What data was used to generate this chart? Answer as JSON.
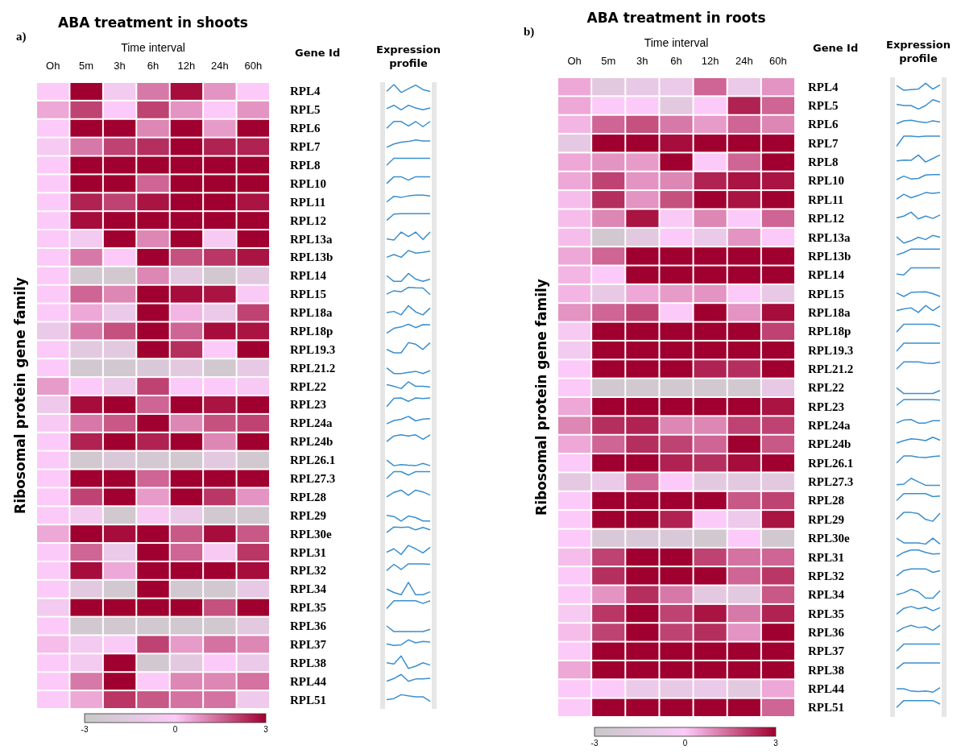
{
  "chart_data": [
    {
      "type": "heatmap",
      "title": "ABA treatment in shoots",
      "xlabel": "Time interval",
      "ylabel": "Ribosomal protein gene family",
      "y2label": "Gene Id",
      "annotations": [
        "a)",
        "Expression profile"
      ],
      "categories": [
        "Oh",
        "5m",
        "3h",
        "6h",
        "12h",
        "24h",
        "60h"
      ],
      "y_categories": [
        "RPL4",
        "RPL5",
        "RPL6",
        "RPL7",
        "RPL8",
        "RPL10",
        "RPL11",
        "RPL12",
        "RPL13a",
        "RPL13b",
        "RPL14",
        "RPL15",
        "RPL18a",
        "RPL18p",
        "RPL19.3",
        "RPL21.2",
        "RPL22",
        "RPL23",
        "RPL24a",
        "RPL24b",
        "RPL26.1",
        "RPL27.3",
        "RPL28",
        "RPL29",
        "RPL30e",
        "RPL31",
        "RPL32",
        "RPL34",
        "RPL35",
        "RPL36",
        "RPL37",
        "RPL38",
        "RPL44",
        "RPL51"
      ],
      "cells": [
        [
          0,
          3,
          -0.5,
          1.2,
          2.8,
          0.8,
          0
        ],
        [
          0.5,
          2,
          0,
          2,
          0.8,
          0,
          0.8
        ],
        [
          0,
          3,
          3,
          1,
          3,
          0.7,
          3
        ],
        [
          -0.3,
          1.2,
          2,
          2.3,
          3,
          2.5,
          2.5
        ],
        [
          0,
          3,
          3,
          3,
          3,
          3,
          3
        ],
        [
          0,
          3,
          3,
          1.5,
          3,
          3,
          3
        ],
        [
          0,
          2.5,
          2,
          2.7,
          3,
          3,
          2.7
        ],
        [
          0,
          2.8,
          3,
          3,
          3,
          3,
          3
        ],
        [
          0,
          -0.5,
          3,
          1,
          3,
          -0.3,
          3
        ],
        [
          0,
          1.2,
          0,
          3,
          1.8,
          2.2,
          2.7
        ],
        [
          0,
          -2.5,
          -2.5,
          1,
          -1.5,
          -2.5,
          -1.5
        ],
        [
          0,
          1.5,
          1,
          3,
          2.8,
          2.7,
          -0.2
        ],
        [
          0,
          0.5,
          -1,
          3,
          0.3,
          -1,
          2
        ],
        [
          -1,
          1.2,
          1.8,
          3,
          1.5,
          2.8,
          2.7
        ],
        [
          0,
          -1.5,
          -1.5,
          3,
          2.3,
          0,
          3
        ],
        [
          0,
          -2.5,
          -2.5,
          -2,
          -1.5,
          -2.5,
          -1.2
        ],
        [
          0.7,
          0,
          -1,
          2,
          0,
          0,
          -0.3
        ],
        [
          -0.8,
          2.8,
          3,
          1.5,
          3,
          2.7,
          3
        ],
        [
          -0.3,
          1.2,
          1.7,
          3,
          1,
          1.8,
          2
        ],
        [
          0,
          2.5,
          3,
          2.5,
          3,
          1,
          3
        ],
        [
          0,
          -2.5,
          -2,
          -2.3,
          -2.5,
          -1.5,
          -2.5
        ],
        [
          0,
          3,
          3,
          1.5,
          3,
          3,
          3
        ],
        [
          0,
          2,
          3,
          0.7,
          3,
          2.2,
          0.8
        ],
        [
          0,
          -0.5,
          -2.5,
          -0.3,
          -1,
          -2.5,
          -2.5
        ],
        [
          0.5,
          3,
          2.8,
          3,
          1.7,
          2.8,
          1.7
        ],
        [
          0,
          1.5,
          -1,
          3,
          1.5,
          -0.3,
          2.2
        ],
        [
          0,
          2.8,
          0.5,
          3,
          3,
          3,
          2.8
        ],
        [
          0,
          -1.5,
          -2.5,
          3,
          -2.5,
          -2.5,
          -1.2
        ],
        [
          -0.5,
          3,
          3,
          3,
          3,
          1.8,
          3
        ],
        [
          0,
          -2.5,
          -2.5,
          -2.5,
          -2.5,
          -2.5,
          -1.5
        ],
        [
          0.2,
          -0.5,
          -0.2,
          2,
          0.7,
          1.3,
          1
        ],
        [
          0,
          -0.5,
          3,
          -2.5,
          -1.5,
          0,
          -1
        ],
        [
          0,
          1.2,
          3,
          0,
          1,
          1,
          1.3
        ],
        [
          0,
          0.5,
          2.2,
          1.7,
          1.3,
          1.3,
          -0.7
        ]
      ],
      "clim": [
        -3,
        3
      ],
      "cticks": [
        -3,
        0,
        3
      ]
    },
    {
      "type": "heatmap",
      "title": "ABA treatment in roots",
      "xlabel": "Time interval",
      "ylabel": "Ribosomal protein gene family",
      "y2label": "Gene Id",
      "annotations": [
        "b)",
        "Expression profile"
      ],
      "categories": [
        "Oh",
        "5m",
        "3h",
        "6h",
        "12h",
        "24h",
        "60h"
      ],
      "y_categories": [
        "RPL4",
        "RPL5",
        "RPL6",
        "RPL7",
        "RPL8",
        "RPL10",
        "RPL11",
        "RPL12",
        "RPL13a",
        "RPL13b",
        "RPL14",
        "RPL15",
        "RPL18a",
        "RPL18p",
        "RPL19.3",
        "RPL21.2",
        "RPL22",
        "RPL23",
        "RPL24a",
        "RPL24b",
        "RPL26.1",
        "RPL27.3",
        "RPL28",
        "RPL29",
        "RPL30e",
        "RPL31",
        "RPL32",
        "RPL34",
        "RPL35",
        "RPL36",
        "RPL37",
        "RPL38",
        "RPL44",
        "RPL51"
      ],
      "cells": [
        [
          0.5,
          -1.5,
          -1.2,
          -1,
          1.5,
          -1,
          0.8
        ],
        [
          0.5,
          0,
          0,
          -1.5,
          0,
          2.5,
          1.5
        ],
        [
          0.3,
          1.5,
          1.8,
          1.2,
          0.7,
          1.5,
          1
        ],
        [
          -1.3,
          3,
          3,
          2.8,
          3,
          3,
          3
        ],
        [
          0.5,
          0.8,
          0.7,
          3,
          0,
          1.5,
          3
        ],
        [
          0.5,
          2,
          0.8,
          1,
          2.5,
          2.7,
          2.7
        ],
        [
          0.2,
          2.3,
          0.8,
          1.8,
          3,
          2.7,
          3
        ],
        [
          0.2,
          1,
          2.7,
          -0.2,
          1,
          0,
          1.5
        ],
        [
          0.2,
          -2.5,
          -1.5,
          0,
          -1,
          0.8,
          0
        ],
        [
          0.5,
          1.5,
          3,
          3,
          3,
          3,
          3
        ],
        [
          0.3,
          0,
          3,
          3,
          3,
          3,
          3
        ],
        [
          0.3,
          -1.2,
          0.5,
          0.7,
          0.8,
          0,
          -1.2
        ],
        [
          0.8,
          1.5,
          2,
          0,
          3,
          0.8,
          2.8
        ],
        [
          -0.3,
          3,
          3,
          3,
          3,
          3,
          2
        ],
        [
          -0.5,
          3,
          3,
          3,
          3,
          3,
          3
        ],
        [
          0,
          3,
          3,
          3,
          2.5,
          2.3,
          3
        ],
        [
          0,
          -2.5,
          -2.5,
          -2.5,
          -2.5,
          -2.5,
          -1.2
        ],
        [
          0.5,
          3,
          3,
          3,
          3,
          3,
          2.7
        ],
        [
          1,
          2.3,
          2.5,
          1,
          1,
          2,
          2
        ],
        [
          0.5,
          1.5,
          2.3,
          2,
          1.5,
          3,
          1.7
        ],
        [
          0,
          3,
          3,
          2.5,
          2.3,
          2.8,
          3
        ],
        [
          -1.3,
          -1,
          1.5,
          0,
          -1.5,
          -1.5,
          -1.5
        ],
        [
          0,
          3,
          3,
          3,
          3,
          1.7,
          2
        ],
        [
          0,
          3,
          3,
          2.5,
          0,
          -0.8,
          2.7
        ],
        [
          0,
          -2,
          -2,
          -2,
          -2.5,
          0,
          -2.5
        ],
        [
          0.2,
          2,
          3,
          3,
          2,
          1.3,
          1.5
        ],
        [
          0,
          2.3,
          3,
          3,
          3,
          1.5,
          2.2
        ],
        [
          0,
          0.8,
          2.3,
          1.2,
          -1.5,
          -1.5,
          1.7
        ],
        [
          -0.3,
          2.2,
          3,
          2,
          2.7,
          1.2,
          2.5
        ],
        [
          0.2,
          2,
          3,
          2,
          2.3,
          0.8,
          3
        ],
        [
          0,
          3,
          3,
          3,
          3,
          3,
          3
        ],
        [
          0.5,
          3,
          3,
          3,
          3,
          3,
          3
        ],
        [
          0,
          0,
          -1,
          -1.2,
          -1,
          -1.5,
          0.5
        ],
        [
          0,
          3,
          3,
          3,
          3,
          3,
          1.5
        ]
      ],
      "clim": [
        -3,
        3
      ],
      "cticks": [
        -3,
        0,
        3
      ]
    }
  ]
}
